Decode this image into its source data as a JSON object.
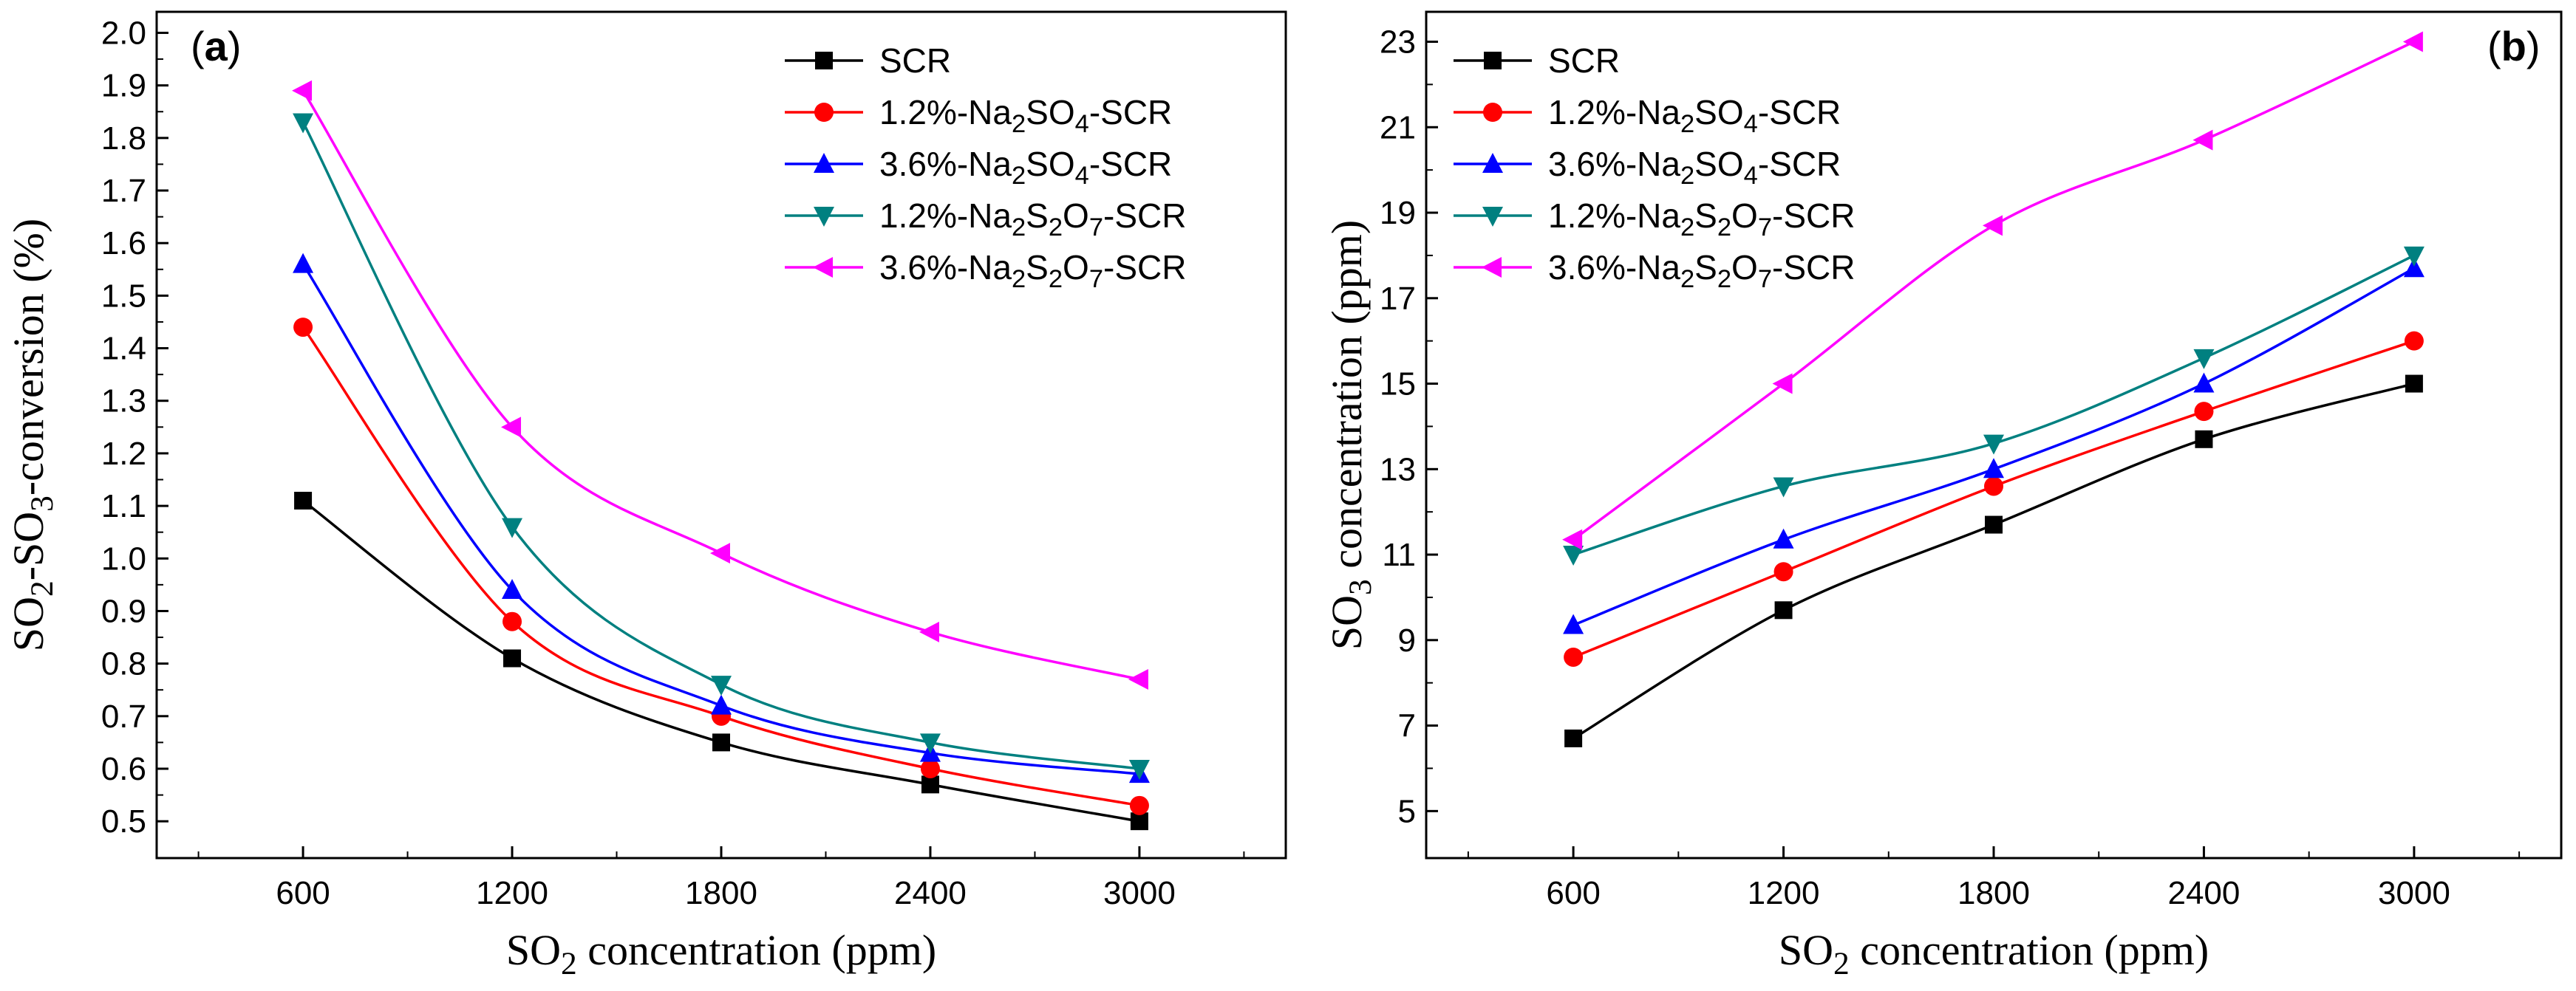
{
  "colors": {
    "SCR": "#000000",
    "Na2SO4_1.2": "#ff0000",
    "Na2SO4_3.6": "#0000ff",
    "Na2S2O7_1.2": "#008080",
    "Na2S2O7_3.6": "#ff00ff"
  },
  "chart_data": [
    {
      "type": "line",
      "panel_label": "a",
      "title": "",
      "xlabel": {
        "main": "SO",
        "sub": "2",
        "rest": " concentration (ppm)"
      },
      "ylabel": {
        "p1": "SO",
        "s1": "2",
        "p2": "-SO",
        "s2": "3",
        "p3": "-conversion (%)"
      },
      "x": [
        600,
        1200,
        1800,
        2400,
        3000
      ],
      "x_ticks": [
        "600",
        "1200",
        "1800",
        "2400",
        "3000"
      ],
      "xlim": [
        180,
        3420
      ],
      "ylim": [
        0.43,
        2.04
      ],
      "y_ticks": [
        "0.5",
        "0.6",
        "0.7",
        "0.8",
        "0.9",
        "1.0",
        "1.1",
        "1.2",
        "1.3",
        "1.4",
        "1.5",
        "1.6",
        "1.7",
        "1.8",
        "1.9",
        "2.0"
      ],
      "legend_position": "top-right",
      "series": [
        {
          "key": "SCR",
          "marker": "square",
          "legend": {
            "a": "SCR",
            "s1": "",
            "b": "",
            "s2": "",
            "c": ""
          },
          "values": [
            1.11,
            0.81,
            0.65,
            0.57,
            0.5
          ]
        },
        {
          "key": "Na2SO4_1.2",
          "marker": "circle",
          "legend": {
            "a": "1.2%-Na",
            "s1": "2",
            "b": "SO",
            "s2": "4",
            "c": "-SCR"
          },
          "values": [
            1.44,
            0.88,
            0.7,
            0.6,
            0.53
          ]
        },
        {
          "key": "Na2SO4_3.6",
          "marker": "triangle-up",
          "legend": {
            "a": "3.6%-Na",
            "s1": "2",
            "b": "SO",
            "s2": "4",
            "c": "-SCR"
          },
          "values": [
            1.56,
            0.94,
            0.72,
            0.63,
            0.59
          ]
        },
        {
          "key": "Na2S2O7_1.2",
          "marker": "triangle-down",
          "legend": {
            "a": "1.2%-Na",
            "s1": "2",
            "b": "S",
            "s2": "2",
            "c": "O",
            "s3": "7",
            "d": "-SCR"
          },
          "values": [
            1.83,
            1.06,
            0.76,
            0.65,
            0.6
          ]
        },
        {
          "key": "Na2S2O7_3.6",
          "marker": "triangle-left",
          "legend": {
            "a": "3.6%-Na",
            "s1": "2",
            "b": "S",
            "s2": "2",
            "c": "O",
            "s3": "7",
            "d": "-SCR"
          },
          "values": [
            1.89,
            1.25,
            1.01,
            0.86,
            0.77
          ]
        }
      ]
    },
    {
      "type": "line",
      "panel_label": "b",
      "title": "",
      "xlabel": {
        "main": "SO",
        "sub": "2",
        "rest": " concentration (ppm)"
      },
      "ylabel": {
        "p1": "SO",
        "s1": "3",
        "p2": " concentration (ppm)"
      },
      "x": [
        600,
        1200,
        1800,
        2400,
        3000
      ],
      "x_ticks": [
        "600",
        "1200",
        "1800",
        "2400",
        "3000"
      ],
      "xlim": [
        180,
        3420
      ],
      "ylim": [
        3.9,
        23.7
      ],
      "y_ticks": [
        "5",
        "7",
        "9",
        "11",
        "13",
        "15",
        "17",
        "19",
        "21",
        "23"
      ],
      "legend_position": "top-left",
      "series": [
        {
          "key": "SCR",
          "marker": "square",
          "legend": {
            "a": "SCR",
            "s1": "",
            "b": "",
            "s2": "",
            "c": ""
          },
          "values": [
            6.7,
            9.7,
            11.7,
            13.7,
            15.0
          ]
        },
        {
          "key": "Na2SO4_1.2",
          "marker": "circle",
          "legend": {
            "a": "1.2%-Na",
            "s1": "2",
            "b": "SO",
            "s2": "4",
            "c": "-SCR"
          },
          "values": [
            8.6,
            10.6,
            12.6,
            14.35,
            16.0
          ]
        },
        {
          "key": "Na2SO4_3.6",
          "marker": "triangle-up",
          "legend": {
            "a": "3.6%-Na",
            "s1": "2",
            "b": "SO",
            "s2": "4",
            "c": "-SCR"
          },
          "values": [
            9.35,
            11.35,
            13.0,
            15.0,
            17.7
          ]
        },
        {
          "key": "Na2S2O7_1.2",
          "marker": "triangle-down",
          "legend": {
            "a": "1.2%-Na",
            "s1": "2",
            "b": "S",
            "s2": "2",
            "c": "O",
            "s3": "7",
            "d": "-SCR"
          },
          "values": [
            11.0,
            12.6,
            13.6,
            15.6,
            18.0
          ]
        },
        {
          "key": "Na2S2O7_3.6",
          "marker": "triangle-left",
          "legend": {
            "a": "3.6%-Na",
            "s1": "2",
            "b": "S",
            "s2": "2",
            "c": "O",
            "s3": "7",
            "d": "-SCR"
          },
          "values": [
            11.35,
            15.0,
            18.7,
            20.7,
            23.0
          ]
        }
      ]
    }
  ]
}
